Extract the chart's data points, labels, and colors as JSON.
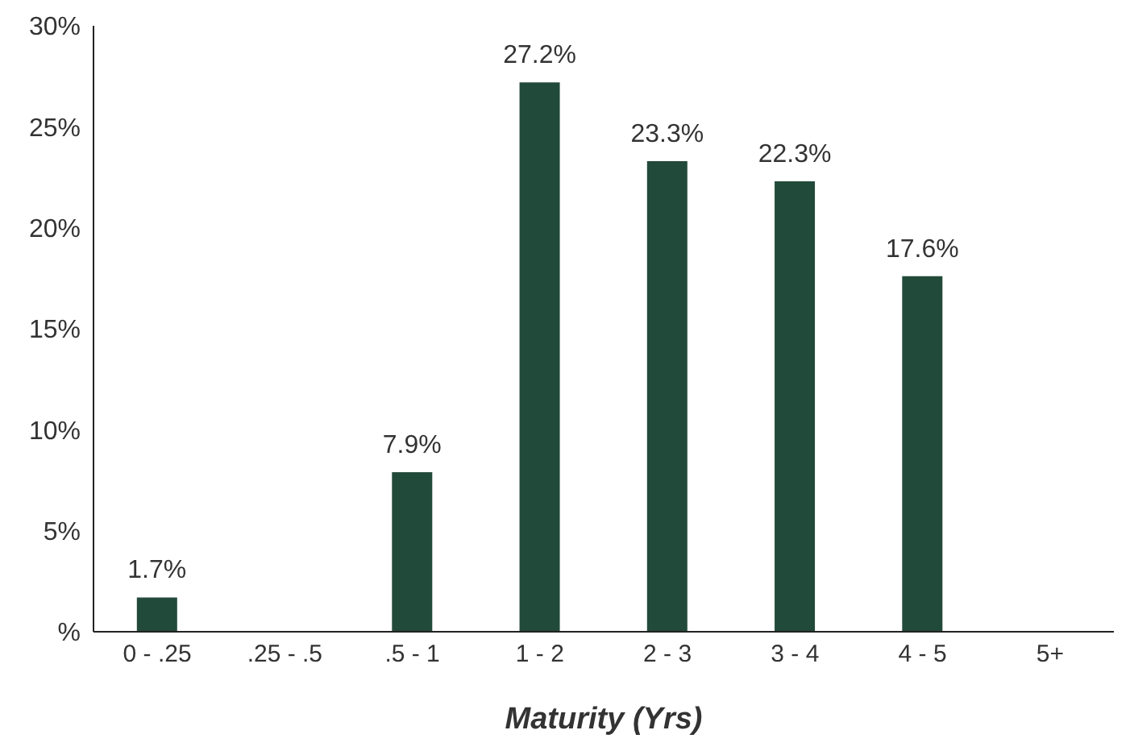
{
  "chart_data": {
    "type": "bar",
    "xlabel": "Maturity (Yrs)",
    "categories": [
      "0 - .25",
      ".25 - .5",
      ".5 - 1",
      "1 - 2",
      "2 - 3",
      "3 - 4",
      "4 - 5",
      "5+"
    ],
    "values": [
      1.7,
      null,
      7.9,
      27.2,
      23.3,
      22.3,
      17.6,
      null
    ],
    "value_labels": [
      "1.7%",
      null,
      "7.9%",
      "27.2%",
      "23.3%",
      "22.3%",
      "17.6%",
      null
    ],
    "color": "#224a3a",
    "ylim": [
      0,
      30
    ],
    "yticks": [
      {
        "value": 0,
        "label": "%"
      },
      {
        "value": 5,
        "label": "5%"
      },
      {
        "value": 10,
        "label": "10%"
      },
      {
        "value": 15,
        "label": "15%"
      },
      {
        "value": 20,
        "label": "20%"
      },
      {
        "value": 25,
        "label": "25%"
      },
      {
        "value": 30,
        "label": "30%"
      }
    ],
    "grid": false,
    "legend": false
  }
}
